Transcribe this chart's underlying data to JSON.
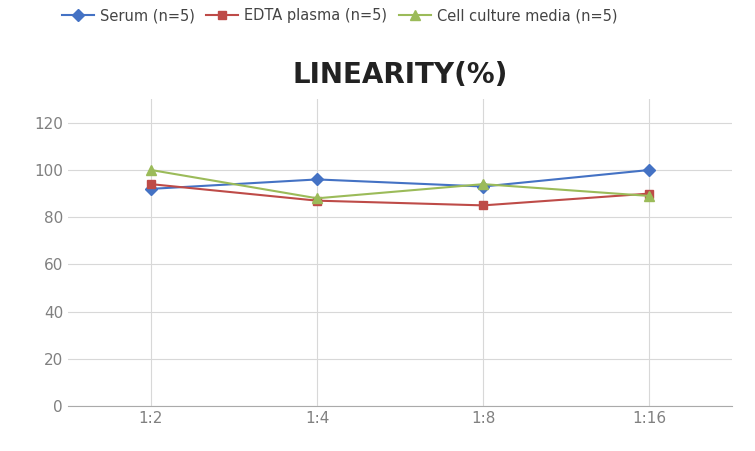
{
  "title": "LINEARITY(%)",
  "title_fontsize": 20,
  "title_fontweight": "bold",
  "x_labels": [
    "1:2",
    "1:4",
    "1:8",
    "1:16"
  ],
  "x_positions": [
    0,
    1,
    2,
    3
  ],
  "series": [
    {
      "label": "Serum (n=5)",
      "values": [
        92,
        96,
        93,
        100
      ],
      "color": "#4472C4",
      "marker": "D",
      "markersize": 6,
      "linewidth": 1.5
    },
    {
      "label": "EDTA plasma (n=5)",
      "values": [
        94,
        87,
        85,
        90
      ],
      "color": "#BE4B48",
      "marker": "s",
      "markersize": 6,
      "linewidth": 1.5
    },
    {
      "label": "Cell culture media (n=5)",
      "values": [
        100,
        88,
        94,
        89
      ],
      "color": "#9BBB59",
      "marker": "^",
      "markersize": 7,
      "linewidth": 1.5
    }
  ],
  "ylim": [
    0,
    130
  ],
  "yticks": [
    0,
    20,
    40,
    60,
    80,
    100,
    120
  ],
  "background_color": "#ffffff",
  "grid_color": "#d8d8d8",
  "legend_fontsize": 10.5,
  "tick_fontsize": 11,
  "tick_color": "#808080"
}
